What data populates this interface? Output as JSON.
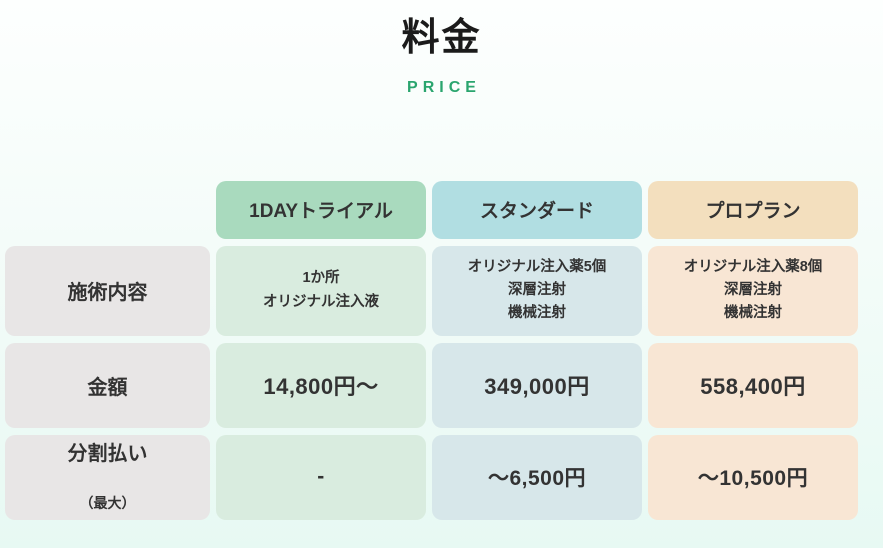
{
  "header": {
    "title": "料金",
    "subtitle": "PRICE"
  },
  "table": {
    "plans": [
      {
        "name": "1DAYトライアル",
        "theme": "green"
      },
      {
        "name": "スタンダード",
        "theme": "blue"
      },
      {
        "name": "プロプラン",
        "theme": "orange"
      }
    ],
    "rows": [
      {
        "label": "施術内容",
        "cells": [
          "1か所\nオリジナル注入液",
          "オリジナル注入薬5個\n深層注射\n機械注射",
          "オリジナル注入薬8個\n深層注射\n機械注射"
        ]
      },
      {
        "label": "金額",
        "cells": [
          "14,800円〜",
          "349,000円",
          "558,400円"
        ]
      },
      {
        "label": "分割払い",
        "label_sub": "（最大）",
        "cells": [
          "-",
          "〜6,500円",
          "〜10,500円"
        ]
      }
    ]
  },
  "colors": {
    "subtitle_green": "#2aa56e",
    "text": "#333333",
    "label_cell_bg": "#e8e6e6",
    "green_header_bg": "#a9dabe",
    "green_body_bg": "#d9ecdf",
    "blue_header_bg": "#b1dee2",
    "blue_body_bg": "#d7e7ea",
    "orange_header_bg": "#f3dfbe",
    "orange_body_bg": "#f8e6d4"
  }
}
